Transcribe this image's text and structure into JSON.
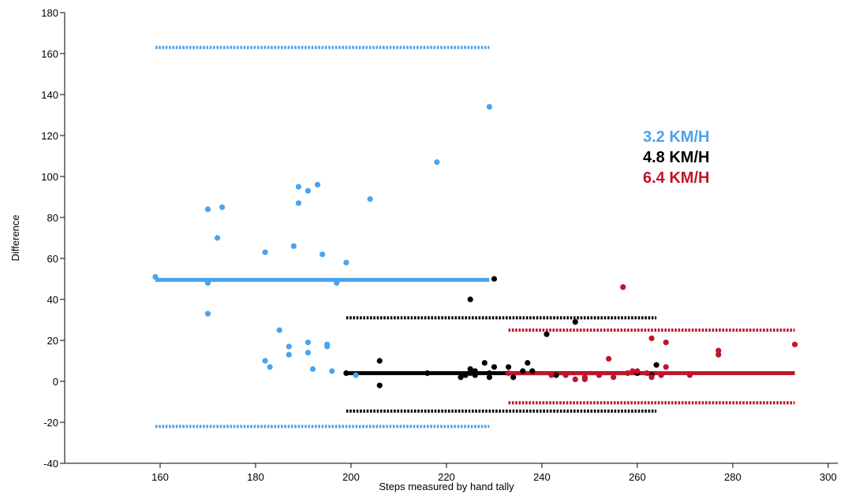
{
  "chart_data": {
    "type": "scatter",
    "title": "",
    "xlabel": "Steps measured by hand tally",
    "ylabel": "Difference",
    "xlim": [
      140,
      302
    ],
    "ylim": [
      -40,
      180
    ],
    "x_ticks": [
      160,
      180,
      200,
      220,
      240,
      260,
      280,
      300
    ],
    "y_ticks": [
      -40,
      -20,
      0,
      20,
      40,
      60,
      80,
      100,
      120,
      140,
      160,
      180
    ],
    "grid": false,
    "legend_placement": "right, text labels",
    "series": [
      {
        "name": "3.2 KM/H",
        "color": "#4aa3ee",
        "mean": 49.5,
        "upper_loa": 163,
        "lower_loa": -22,
        "line_x_range": [
          159,
          229
        ],
        "points": [
          [
            159,
            51
          ],
          [
            170,
            84
          ],
          [
            170,
            48
          ],
          [
            170,
            33
          ],
          [
            172,
            70
          ],
          [
            173,
            85
          ],
          [
            182,
            63
          ],
          [
            182,
            10
          ],
          [
            183,
            7
          ],
          [
            185,
            25
          ],
          [
            187,
            17
          ],
          [
            187,
            13
          ],
          [
            188,
            66
          ],
          [
            189,
            95
          ],
          [
            189,
            87
          ],
          [
            191,
            93
          ],
          [
            191,
            19
          ],
          [
            191,
            14
          ],
          [
            192,
            6
          ],
          [
            193,
            96
          ],
          [
            194,
            62
          ],
          [
            195,
            18
          ],
          [
            195,
            17
          ],
          [
            196,
            5
          ],
          [
            197,
            48
          ],
          [
            199,
            58
          ],
          [
            201,
            3
          ],
          [
            204,
            89
          ],
          [
            218,
            107
          ],
          [
            229,
            134
          ]
        ]
      },
      {
        "name": "4.8 KM/H",
        "color": "#000000",
        "mean": 4,
        "upper_loa": 31,
        "lower_loa": -14.5,
        "line_x_range": [
          199,
          264
        ],
        "points": [
          [
            199,
            4
          ],
          [
            206,
            10
          ],
          [
            206,
            -2
          ],
          [
            216,
            4
          ],
          [
            223,
            2
          ],
          [
            224,
            3
          ],
          [
            225,
            4
          ],
          [
            225,
            40
          ],
          [
            225,
            6
          ],
          [
            226,
            5
          ],
          [
            226,
            3
          ],
          [
            228,
            9
          ],
          [
            229,
            4
          ],
          [
            229,
            2
          ],
          [
            230,
            7
          ],
          [
            230,
            50
          ],
          [
            233,
            7
          ],
          [
            234,
            2
          ],
          [
            236,
            5
          ],
          [
            237,
            9
          ],
          [
            238,
            5
          ],
          [
            241,
            23
          ],
          [
            243,
            3
          ],
          [
            247,
            29
          ],
          [
            260,
            4
          ],
          [
            263,
            3
          ],
          [
            264,
            8
          ]
        ]
      },
      {
        "name": "6.4 KM/H",
        "color": "#c0142a",
        "mean": 4,
        "upper_loa": 25,
        "lower_loa": -10.5,
        "line_x_range": [
          233,
          293
        ],
        "points": [
          [
            233,
            4
          ],
          [
            242,
            3
          ],
          [
            245,
            3
          ],
          [
            247,
            1
          ],
          [
            249,
            1
          ],
          [
            249,
            2
          ],
          [
            252,
            3
          ],
          [
            254,
            11
          ],
          [
            255,
            2
          ],
          [
            257,
            46
          ],
          [
            258,
            4
          ],
          [
            259,
            5
          ],
          [
            260,
            5
          ],
          [
            262,
            4
          ],
          [
            263,
            21
          ],
          [
            263,
            2
          ],
          [
            265,
            3
          ],
          [
            266,
            19
          ],
          [
            266,
            7
          ],
          [
            271,
            3
          ],
          [
            277,
            15
          ],
          [
            277,
            13
          ],
          [
            293,
            18
          ]
        ]
      }
    ]
  }
}
